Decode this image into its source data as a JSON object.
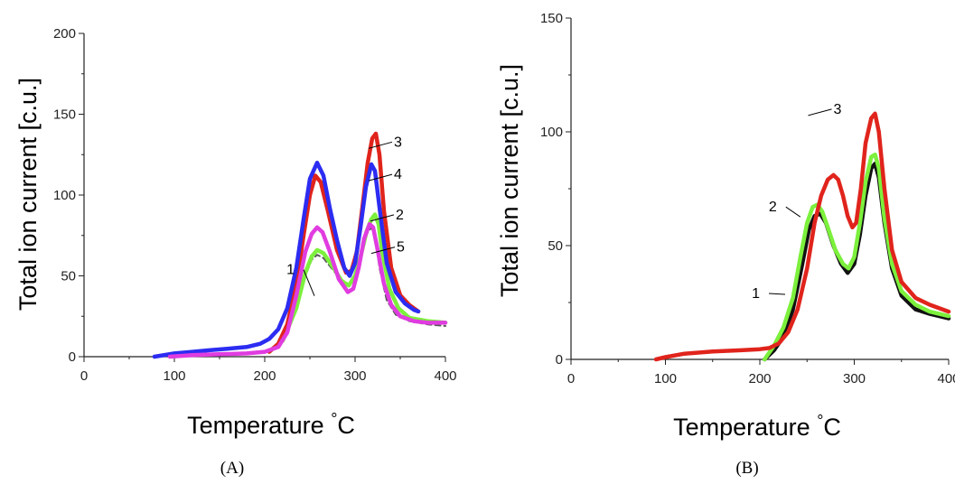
{
  "chart_data": [
    {
      "type": "line",
      "panel_label": "(A)",
      "xlabel": "Temperature",
      "xunit": "°C",
      "ylabel": "Total ion current  [c.u.]",
      "xlim": [
        0,
        400
      ],
      "ylim": [
        0,
        200
      ],
      "x_ticks": [
        0,
        100,
        200,
        300,
        400
      ],
      "y_ticks": [
        0,
        50,
        100,
        150,
        200
      ],
      "grid": false,
      "legend": "none",
      "series": [
        {
          "name": "1",
          "color": "#5a5a5a",
          "dashed": true,
          "x": [
            205,
            220,
            235,
            245,
            252,
            258,
            265,
            275,
            285,
            293,
            300,
            307,
            313,
            318,
            322,
            327,
            335,
            345,
            360,
            380,
            400
          ],
          "y": [
            3,
            10,
            30,
            50,
            60,
            63,
            61,
            54,
            47,
            44,
            48,
            62,
            76,
            80,
            75,
            55,
            35,
            26,
            22,
            20,
            19
          ]
        },
        {
          "name": "2",
          "color": "#7cf03c",
          "x": [
            205,
            220,
            235,
            245,
            252,
            258,
            265,
            275,
            285,
            293,
            300,
            307,
            313,
            318,
            322,
            326,
            330,
            338,
            348,
            360,
            380,
            400
          ],
          "y": [
            3,
            10,
            30,
            52,
            62,
            66,
            64,
            56,
            47,
            44,
            50,
            64,
            78,
            85,
            88,
            82,
            65,
            42,
            30,
            24,
            22,
            21
          ]
        },
        {
          "name": "3",
          "color": "#e0241c",
          "x": [
            205,
            215,
            225,
            235,
            243,
            250,
            256,
            262,
            270,
            280,
            290,
            296,
            302,
            308,
            314,
            319,
            323,
            327,
            332,
            340,
            350,
            360,
            370
          ],
          "y": [
            3,
            8,
            20,
            45,
            75,
            100,
            112,
            108,
            90,
            66,
            52,
            53,
            65,
            92,
            120,
            135,
            138,
            125,
            90,
            55,
            38,
            32,
            28
          ]
        },
        {
          "name": "4",
          "color": "#2c2cf2",
          "x": [
            78,
            100,
            120,
            140,
            160,
            180,
            195,
            205,
            215,
            225,
            235,
            243,
            250,
            258,
            265,
            272,
            280,
            288,
            294,
            300,
            306,
            312,
            318,
            322,
            328,
            335,
            345,
            355,
            365,
            370
          ],
          "y": [
            0,
            2,
            3,
            4,
            5,
            6,
            8,
            11,
            17,
            30,
            55,
            85,
            110,
            120,
            112,
            92,
            72,
            55,
            50,
            58,
            80,
            105,
            119,
            115,
            88,
            58,
            40,
            33,
            29,
            28
          ]
        },
        {
          "name": "5",
          "color": "#e03ce0",
          "x": [
            95,
            120,
            150,
            180,
            200,
            215,
            225,
            235,
            245,
            252,
            258,
            264,
            272,
            282,
            292,
            298,
            304,
            310,
            316,
            320,
            325,
            332,
            340,
            350,
            365,
            380,
            400
          ],
          "y": [
            0,
            1,
            1.5,
            2,
            3,
            6,
            15,
            38,
            65,
            76,
            80,
            77,
            65,
            48,
            40,
            42,
            55,
            73,
            82,
            80,
            66,
            45,
            32,
            25,
            22,
            21,
            21
          ]
        }
      ],
      "annotations": [
        {
          "text": "1",
          "x": 233,
          "y": 51
        },
        {
          "text": "2",
          "x": 345,
          "y": 85
        },
        {
          "text": "3",
          "x": 343,
          "y": 130
        },
        {
          "text": "4",
          "x": 343,
          "y": 110
        },
        {
          "text": "5",
          "x": 346,
          "y": 65
        }
      ]
    },
    {
      "type": "line",
      "panel_label": "(B)",
      "xlabel": "Temperature",
      "xunit": "°C",
      "ylabel": "Total ion current  [c.u.]",
      "xlim": [
        0,
        400
      ],
      "ylim": [
        0,
        150
      ],
      "x_ticks": [
        0,
        100,
        200,
        300,
        400
      ],
      "y_ticks": [
        0,
        50,
        100,
        150
      ],
      "grid": false,
      "legend": "none",
      "series": [
        {
          "name": "1",
          "color": "#111111",
          "x": [
            205,
            215,
            225,
            235,
            245,
            252,
            258,
            264,
            270,
            278,
            286,
            293,
            300,
            306,
            312,
            318,
            322,
            326,
            332,
            340,
            350,
            365,
            380,
            400
          ],
          "y": [
            0,
            4,
            10,
            22,
            42,
            57,
            63,
            64,
            60,
            50,
            42,
            38,
            42,
            55,
            72,
            84,
            86,
            80,
            60,
            40,
            28,
            22,
            20,
            18
          ]
        },
        {
          "name": "2",
          "color": "#7cf03c",
          "x": [
            205,
            215,
            225,
            235,
            243,
            250,
            256,
            261,
            266,
            272,
            280,
            288,
            294,
            300,
            306,
            312,
            318,
            322,
            326,
            332,
            340,
            350,
            365,
            380,
            400
          ],
          "y": [
            0,
            6,
            14,
            27,
            45,
            60,
            67,
            68,
            65,
            58,
            48,
            42,
            40,
            45,
            60,
            78,
            89,
            90,
            84,
            62,
            42,
            30,
            24,
            21,
            19
          ]
        },
        {
          "name": "3",
          "color": "#e0241c",
          "x": [
            90,
            100,
            120,
            150,
            180,
            200,
            210,
            220,
            230,
            240,
            250,
            258,
            265,
            272,
            278,
            283,
            288,
            293,
            298,
            302,
            307,
            312,
            318,
            322,
            326,
            332,
            340,
            350,
            365,
            380,
            400
          ],
          "y": [
            0,
            1,
            2.5,
            3.5,
            4,
            4.5,
            5,
            7,
            12,
            22,
            40,
            60,
            72,
            79,
            81,
            79,
            72,
            63,
            58,
            60,
            75,
            95,
            106,
            108,
            100,
            75,
            48,
            34,
            27,
            24,
            21
          ]
        }
      ],
      "annotations": [
        {
          "text": "1",
          "x": 200,
          "y": 27
        },
        {
          "text": "2",
          "x": 218,
          "y": 65
        },
        {
          "text": "3",
          "x": 278,
          "y": 108
        }
      ]
    }
  ]
}
